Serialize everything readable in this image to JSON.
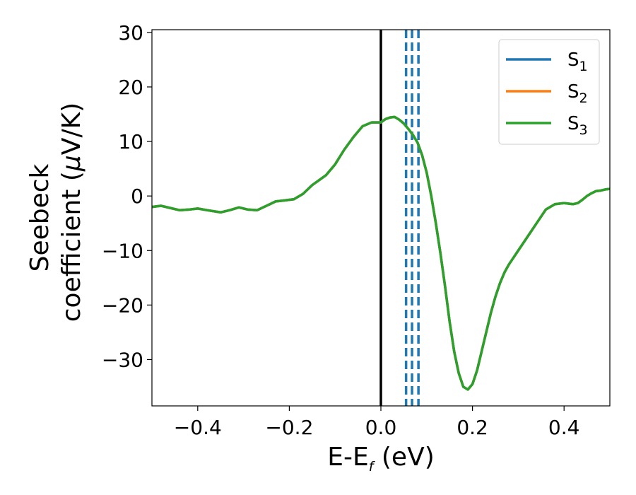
{
  "chart_data": {
    "type": "line",
    "xlabel_main": "E-E",
    "xlabel_sub": "f",
    "xlabel_unit": " (eV)",
    "ylabel_line1": "Seebeck",
    "ylabel_line2_text": "coefficient  (",
    "ylabel_line2_mu": "μ",
    "ylabel_line2_unit": "V/K)",
    "xlim": [
      -0.5,
      0.5
    ],
    "ylim": [
      -38.5,
      30.5
    ],
    "xticks": [
      -0.4,
      -0.2,
      0.0,
      0.2,
      0.4
    ],
    "xtick_labels": [
      "−0.4",
      "−0.2",
      "0.0",
      "0.2",
      "0.4"
    ],
    "yticks": [
      -30,
      -20,
      -10,
      0,
      10,
      20,
      30
    ],
    "ytick_labels": [
      "−30",
      "−20",
      "−10",
      "0",
      "10",
      "20",
      "30"
    ],
    "fermi_line": {
      "x": 0.0,
      "color": "#000000",
      "style": "solid"
    },
    "vlines": [
      {
        "x": 0.055,
        "color": "#1f77b4",
        "style": "dashed"
      },
      {
        "x": 0.068,
        "color": "#1f77b4",
        "style": "dashed"
      },
      {
        "x": 0.082,
        "color": "#1f77b4",
        "style": "dashed"
      }
    ],
    "legend": {
      "placement": "top-right",
      "entries": [
        {
          "label": "S",
          "sub": "1",
          "color": "#1f77b4"
        },
        {
          "label": "S",
          "sub": "2",
          "color": "#ff7f0e"
        },
        {
          "label": "S",
          "sub": "3",
          "color": "#2ca02c"
        }
      ]
    },
    "x": [
      -0.5,
      -0.48,
      -0.46,
      -0.44,
      -0.42,
      -0.4,
      -0.38,
      -0.35,
      -0.33,
      -0.31,
      -0.29,
      -0.27,
      -0.25,
      -0.23,
      -0.21,
      -0.19,
      -0.17,
      -0.15,
      -0.12,
      -0.1,
      -0.08,
      -0.06,
      -0.04,
      -0.02,
      0.0,
      0.01,
      0.02,
      0.03,
      0.04,
      0.05,
      0.06,
      0.07,
      0.08,
      0.09,
      0.1,
      0.11,
      0.12,
      0.13,
      0.14,
      0.15,
      0.16,
      0.17,
      0.18,
      0.19,
      0.2,
      0.21,
      0.22,
      0.23,
      0.24,
      0.25,
      0.26,
      0.27,
      0.28,
      0.3,
      0.32,
      0.34,
      0.36,
      0.38,
      0.4,
      0.41,
      0.42,
      0.43,
      0.44,
      0.45,
      0.46,
      0.47,
      0.48,
      0.49,
      0.5
    ],
    "series": [
      {
        "name": "S1",
        "color": "#1f77b4",
        "values": [
          -2.0,
          -1.8,
          -2.2,
          -2.6,
          -2.5,
          -2.3,
          -2.6,
          -3.0,
          -2.6,
          -2.1,
          -2.5,
          -2.6,
          -1.8,
          -1.0,
          -0.8,
          -0.6,
          0.4,
          2.0,
          3.8,
          5.8,
          8.5,
          10.8,
          12.8,
          13.5,
          13.5,
          14.1,
          14.4,
          14.5,
          14.0,
          13.3,
          12.3,
          11.2,
          9.8,
          7.5,
          4.3,
          0.0,
          -5.0,
          -10.5,
          -16.5,
          -23.0,
          -28.5,
          -32.5,
          -35.0,
          -35.5,
          -34.5,
          -32.0,
          -28.5,
          -25.0,
          -21.5,
          -18.5,
          -16.0,
          -14.0,
          -12.5,
          -10.0,
          -7.5,
          -5.0,
          -2.5,
          -1.5,
          -1.3,
          -1.4,
          -1.5,
          -1.3,
          -0.7,
          0.0,
          0.5,
          0.9,
          1.0,
          1.2,
          1.3
        ]
      },
      {
        "name": "S2",
        "color": "#ff7f0e",
        "values": [
          -2.0,
          -1.8,
          -2.2,
          -2.6,
          -2.5,
          -2.3,
          -2.6,
          -3.0,
          -2.6,
          -2.1,
          -2.5,
          -2.6,
          -1.8,
          -1.0,
          -0.8,
          -0.6,
          0.4,
          2.0,
          3.8,
          5.8,
          8.5,
          10.8,
          12.8,
          13.5,
          13.5,
          14.1,
          14.4,
          14.5,
          14.0,
          13.3,
          12.3,
          11.2,
          9.8,
          7.5,
          4.3,
          0.0,
          -5.0,
          -10.5,
          -16.5,
          -23.0,
          -28.5,
          -32.5,
          -35.0,
          -35.5,
          -34.5,
          -32.0,
          -28.5,
          -25.0,
          -21.5,
          -18.5,
          -16.0,
          -14.0,
          -12.5,
          -10.0,
          -7.5,
          -5.0,
          -2.5,
          -1.5,
          -1.3,
          -1.4,
          -1.5,
          -1.3,
          -0.7,
          0.0,
          0.5,
          0.9,
          1.0,
          1.2,
          1.3
        ]
      },
      {
        "name": "S3",
        "color": "#2ca02c",
        "values": [
          -2.0,
          -1.8,
          -2.2,
          -2.6,
          -2.5,
          -2.3,
          -2.6,
          -3.0,
          -2.6,
          -2.1,
          -2.5,
          -2.6,
          -1.8,
          -1.0,
          -0.8,
          -0.6,
          0.4,
          2.0,
          3.8,
          5.8,
          8.5,
          10.8,
          12.8,
          13.5,
          13.5,
          14.1,
          14.4,
          14.5,
          14.0,
          13.3,
          12.3,
          11.2,
          9.8,
          7.5,
          4.3,
          0.0,
          -5.0,
          -10.5,
          -16.5,
          -23.0,
          -28.5,
          -32.5,
          -35.0,
          -35.5,
          -34.5,
          -32.0,
          -28.5,
          -25.0,
          -21.5,
          -18.5,
          -16.0,
          -14.0,
          -12.5,
          -10.0,
          -7.5,
          -5.0,
          -2.5,
          -1.5,
          -1.3,
          -1.4,
          -1.5,
          -1.3,
          -0.7,
          0.0,
          0.5,
          0.9,
          1.0,
          1.2,
          1.3
        ]
      }
    ]
  }
}
